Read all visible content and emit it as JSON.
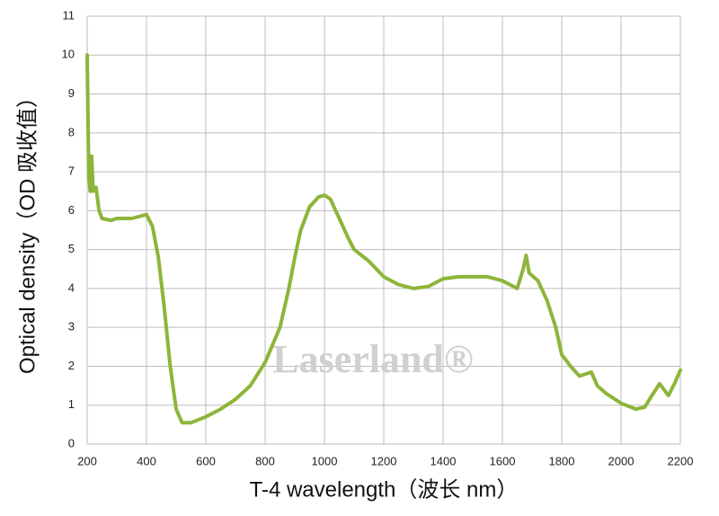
{
  "chart_data": {
    "type": "line",
    "x_label": "T-4 wavelength（波长 nm）",
    "y_label": "Optical density（OD 吸收值）",
    "watermark": "Laserland®",
    "xlim": [
      200,
      2200
    ],
    "xticks": [
      200,
      400,
      600,
      800,
      1000,
      1200,
      1400,
      1600,
      1800,
      2000,
      2200
    ],
    "ylim": [
      0,
      11
    ],
    "yticks": [
      0,
      1,
      2,
      3,
      4,
      5,
      6,
      7,
      8,
      9,
      10,
      11
    ],
    "grid": true,
    "series": [
      {
        "color": "#8db53a",
        "x": [
          200,
          205,
          210,
          215,
          220,
          230,
          240,
          250,
          280,
          300,
          350,
          400,
          420,
          440,
          460,
          480,
          500,
          520,
          550,
          600,
          650,
          700,
          750,
          800,
          850,
          880,
          900,
          920,
          950,
          980,
          1000,
          1020,
          1050,
          1080,
          1100,
          1150,
          1200,
          1250,
          1300,
          1350,
          1400,
          1450,
          1500,
          1550,
          1600,
          1650,
          1670,
          1680,
          1690,
          1720,
          1750,
          1780,
          1800,
          1830,
          1860,
          1880,
          1900,
          1920,
          1950,
          2000,
          2050,
          2080,
          2100,
          2130,
          2160,
          2180,
          2200
        ],
        "values": [
          10.0,
          7.0,
          6.5,
          7.4,
          6.5,
          6.6,
          6.0,
          5.8,
          5.75,
          5.8,
          5.8,
          5.9,
          5.6,
          4.8,
          3.5,
          2.0,
          0.9,
          0.55,
          0.55,
          0.7,
          0.9,
          1.15,
          1.5,
          2.1,
          3.0,
          4.0,
          4.8,
          5.5,
          6.1,
          6.35,
          6.4,
          6.3,
          5.8,
          5.3,
          5.0,
          4.7,
          4.3,
          4.1,
          4.0,
          4.05,
          4.25,
          4.3,
          4.3,
          4.3,
          4.2,
          4.0,
          4.5,
          4.85,
          4.4,
          4.2,
          3.7,
          3.0,
          2.3,
          2.0,
          1.75,
          1.8,
          1.85,
          1.5,
          1.3,
          1.05,
          0.9,
          0.95,
          1.2,
          1.55,
          1.25,
          1.55,
          1.9
        ]
      }
    ]
  }
}
